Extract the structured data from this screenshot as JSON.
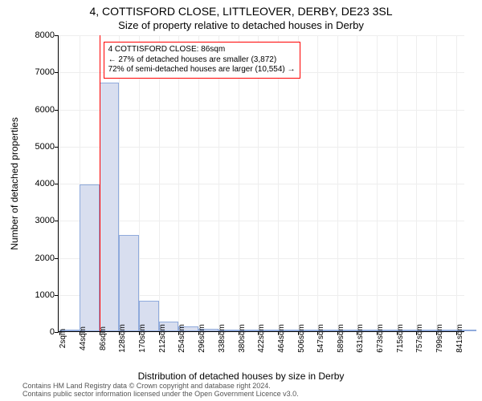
{
  "title": "4, COTTISFORD CLOSE, LITTLEOVER, DERBY, DE23 3SL",
  "subtitle": "Size of property relative to detached houses in Derby",
  "y_axis_label": "Number of detached properties",
  "x_axis_label": "Distribution of detached houses by size in Derby",
  "footer_line1": "Contains HM Land Registry data © Crown copyright and database right 2024.",
  "footer_line2": "Contains public sector information licensed under the Open Government Licence v3.0.",
  "callout": {
    "line1": "4 COTTISFORD CLOSE: 86sqm",
    "line2": "← 27% of detached houses are smaller (3,872)",
    "line3": "72% of semi-detached houses are larger (10,554) →"
  },
  "chart": {
    "type": "histogram",
    "background_color": "#ffffff",
    "grid_color": "#eeeeee",
    "axis_color": "#000000",
    "bar_fill": "#d8deef",
    "bar_border": "#8faadc",
    "subject_line_color": "#ff0000",
    "callout_border": "#ff0000",
    "font_family": "Arial",
    "title_fontsize": 14,
    "subtitle_fontsize": 13,
    "axis_label_fontsize": 12,
    "tick_fontsize": 11,
    "xtick_fontsize": 10,
    "callout_fontsize": 10,
    "footer_color": "#555555",
    "x_min": 0,
    "x_max": 860,
    "y_min": 0,
    "y_max": 8000,
    "y_ticks": [
      0,
      1000,
      2000,
      3000,
      4000,
      5000,
      6000,
      7000,
      8000
    ],
    "x_ticks": [
      2,
      44,
      86,
      128,
      170,
      212,
      254,
      296,
      338,
      380,
      422,
      464,
      506,
      547,
      589,
      631,
      673,
      715,
      757,
      799,
      841
    ],
    "x_tick_suffix": "sqm",
    "subject_x": 86,
    "bin_width": 42,
    "bins": [
      {
        "x": 2,
        "count": 15
      },
      {
        "x": 44,
        "count": 3950
      },
      {
        "x": 86,
        "count": 6700
      },
      {
        "x": 128,
        "count": 2600
      },
      {
        "x": 170,
        "count": 820
      },
      {
        "x": 212,
        "count": 250
      },
      {
        "x": 254,
        "count": 120
      },
      {
        "x": 296,
        "count": 60
      },
      {
        "x": 338,
        "count": 50
      },
      {
        "x": 380,
        "count": 25
      },
      {
        "x": 422,
        "count": 15
      },
      {
        "x": 464,
        "count": 5
      },
      {
        "x": 506,
        "count": 5
      },
      {
        "x": 547,
        "count": 5
      },
      {
        "x": 589,
        "count": 3
      },
      {
        "x": 631,
        "count": 3
      },
      {
        "x": 673,
        "count": 3
      },
      {
        "x": 715,
        "count": 3
      },
      {
        "x": 757,
        "count": 3
      },
      {
        "x": 799,
        "count": 3
      },
      {
        "x": 841,
        "count": 3
      }
    ]
  }
}
